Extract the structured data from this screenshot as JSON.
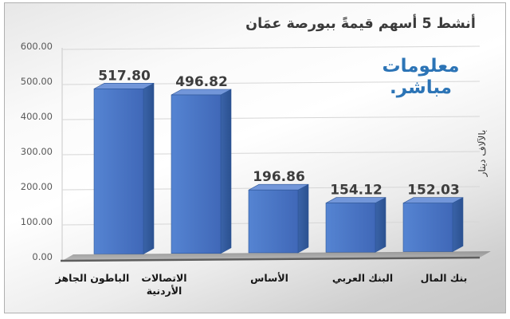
{
  "title": "أنشط 5 أسهم قيمةً ببورصة عمَان",
  "watermark": {
    "line1": "معلومات",
    "line2": "مباشر.",
    "color": "#2C74B6"
  },
  "chart_data": {
    "type": "bar",
    "variant": "3d-column",
    "title": "أنشط 5 أسهم قيمةً ببورصة عمَان",
    "categories": [
      "الباطون الجاهز",
      "الاتصالات الأردنية",
      "الأساس",
      "البنك العربي",
      "بنك المال"
    ],
    "categories_display": [
      [
        "الباطون الجاهز"
      ],
      [
        "الاتصالات",
        "الأردنية"
      ],
      [
        "الأساس"
      ],
      [
        "البنك العربي"
      ],
      [
        "بنك المال"
      ]
    ],
    "values": [
      517.8,
      496.82,
      196.86,
      154.12,
      152.03
    ],
    "value_labels": [
      "517.80",
      "496.82",
      "196.86",
      "154.12",
      "152.03"
    ],
    "ylabel": "بالآلاف دينار",
    "ylim": [
      0,
      600
    ],
    "ytick_step": 100,
    "yticks": [
      "0.00",
      "100.00",
      "200.00",
      "300.00",
      "400.00",
      "500.00",
      "600.00"
    ],
    "grid": true,
    "legend": "none",
    "colors": {
      "bar_front_light": "#5584D2",
      "bar_front_dark": "#4068B8",
      "bar_top": "#7296D9",
      "bar_side_light": "#3A63A8",
      "bar_side_dark": "#2B5190",
      "bar_edge": "#2E5697",
      "grid": "#d6d6d6",
      "axis": "#5e5e5e",
      "floor_light": "#bcbcbc",
      "floor_dark": "#989898",
      "tick_text": "#595959",
      "value_text": "#3d3d3d",
      "category_text": "#161616",
      "axis_title_text": "#333333"
    }
  }
}
